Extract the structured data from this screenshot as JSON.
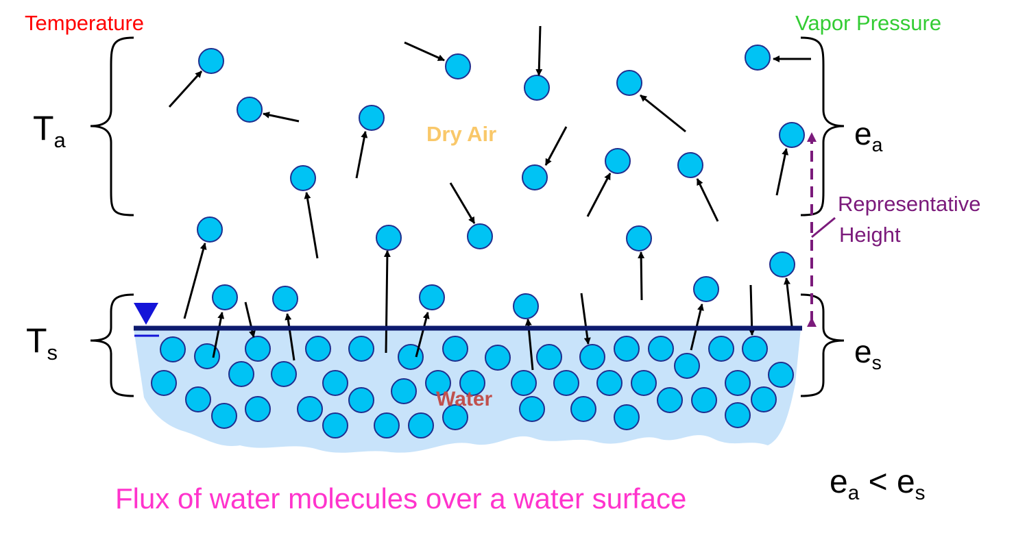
{
  "labels": {
    "temperature_header": "Temperature",
    "vapor_pressure_header": "Vapor Pressure",
    "air_temp_symbol": "T",
    "air_temp_subscript": "a",
    "surface_temp_symbol": "T",
    "surface_temp_subscript": "s",
    "air_vapor_symbol": "e",
    "air_vapor_subscript": "a",
    "surface_vapor_symbol": "e",
    "surface_vapor_subscript": "s",
    "dry_air": "Dry Air",
    "water": "Water",
    "representative_height_line1": "Representative",
    "representative_height_line2": "Height",
    "relation_left": "e",
    "relation_left_sub": "a",
    "relation_op": " < ",
    "relation_right": "e",
    "relation_right_sub": "s",
    "caption": "Flux of water molecules over a water surface"
  },
  "colors": {
    "temperature_header": "#ff0000",
    "vapor_pressure_header": "#33cc33",
    "dry_air": "#f9c86a",
    "water": "#c0504d",
    "representative_height": "#7b1a7b",
    "caption": "#ff33cc",
    "molecule_fill": "#00c3f4",
    "molecule_stroke": "#1f2f8f",
    "water_body": "#c8e3fa",
    "water_surface_line": "#0d1a6e",
    "water_level_marker": "#1414d8",
    "arrow": "#000000"
  },
  "icons": {
    "water_level_marker": "inverted-triangle-water-level-icon",
    "molecule": "water-molecule-circle"
  }
}
